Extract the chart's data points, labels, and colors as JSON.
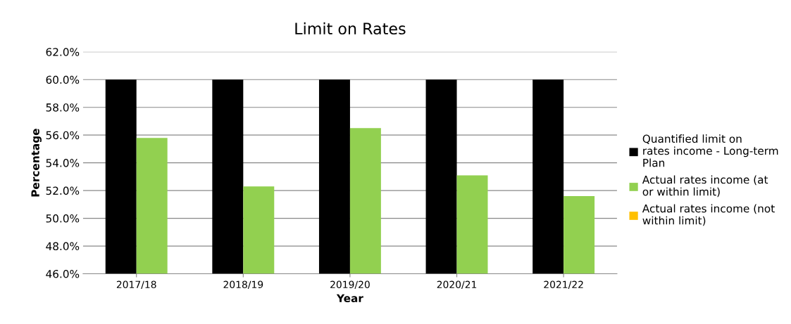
{
  "chart_data": {
    "type": "bar",
    "title": "Limit on Rates",
    "xlabel": "Year",
    "ylabel": "Percentage",
    "categories": [
      "2017/18",
      "2018/19",
      "2019/20",
      "2020/21",
      "2021/22"
    ],
    "series": [
      {
        "name": "Quantified limit on rates income - Long-term Plan",
        "color": "#000000",
        "values": [
          60.0,
          60.0,
          60.0,
          60.0,
          60.0
        ]
      },
      {
        "name": "Actual rates income (at or within limit)",
        "color": "#92d050",
        "values": [
          55.8,
          52.3,
          56.5,
          53.1,
          51.6
        ]
      },
      {
        "name": "Actual rates income (not within limit)",
        "color": "#ffc000",
        "values": [
          null,
          null,
          null,
          null,
          null
        ]
      }
    ],
    "ylim": [
      46,
      62
    ],
    "yticks": [
      {
        "value": 46,
        "label": "46.0%"
      },
      {
        "value": 48,
        "label": "48.0%"
      },
      {
        "value": 50,
        "label": "50.0%"
      },
      {
        "value": 52,
        "label": "52.0%"
      },
      {
        "value": 54,
        "label": "54.0%"
      },
      {
        "value": 56,
        "label": "56.0%"
      },
      {
        "value": 58,
        "label": "58.0%"
      },
      {
        "value": 60,
        "label": "60.0%"
      },
      {
        "value": 62,
        "label": "62.0%"
      }
    ],
    "grid": "y",
    "legend": "right"
  }
}
